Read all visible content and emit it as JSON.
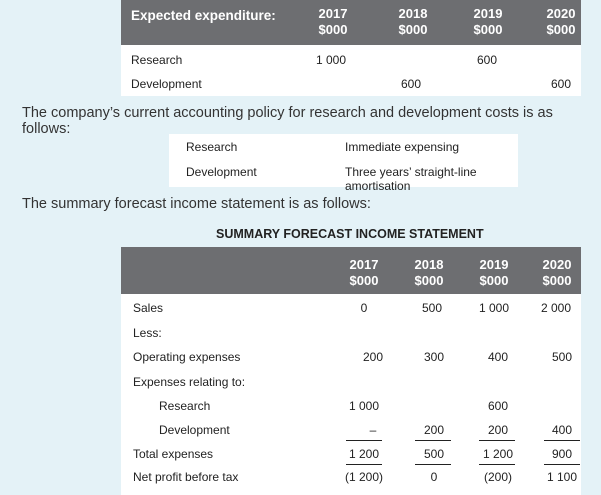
{
  "expenditure": {
    "header": "Expected expenditure:",
    "years": [
      "2017",
      "2018",
      "2019",
      "2020"
    ],
    "unit": "$000",
    "rows": [
      {
        "label": "Research",
        "values": [
          "1 000",
          "",
          "600",
          ""
        ]
      },
      {
        "label": "Development",
        "values": [
          "",
          "600",
          "",
          "600"
        ]
      }
    ]
  },
  "para1": "The company’s current accounting policy for research and development costs is as follows:",
  "policy": [
    {
      "item": "Research",
      "policy": "Immediate expensing"
    },
    {
      "item": "Development",
      "policy": "Three years’ straight-line amortisation"
    }
  ],
  "para2": "The summary forecast income statement is as follows:",
  "statement": {
    "title": "SUMMARY FORECAST INCOME STATEMENT",
    "years": [
      "2017",
      "2018",
      "2019",
      "2020"
    ],
    "unit": "$000",
    "rows": [
      {
        "label": "Sales",
        "values": [
          "0",
          "500",
          "1 000",
          "2 000"
        ]
      },
      {
        "label": "Less:",
        "values": [
          "",
          "",
          "",
          ""
        ]
      },
      {
        "label": "Operating expenses",
        "values": [
          "200",
          "300",
          "400",
          "500"
        ]
      },
      {
        "label": "Expenses relating to:",
        "values": [
          "",
          "",
          "",
          ""
        ]
      },
      {
        "label": "Research",
        "values": [
          "1 000",
          "",
          "600",
          ""
        ]
      },
      {
        "label": "Development",
        "values": [
          "–",
          "200",
          "200",
          "400"
        ]
      },
      {
        "label": "Total expenses",
        "values": [
          "1 200",
          "500",
          "1 200",
          "900"
        ]
      },
      {
        "label": "Net profit before tax",
        "values": [
          "(1 200)",
          "0",
          "(200)",
          "1 100"
        ]
      }
    ]
  }
}
